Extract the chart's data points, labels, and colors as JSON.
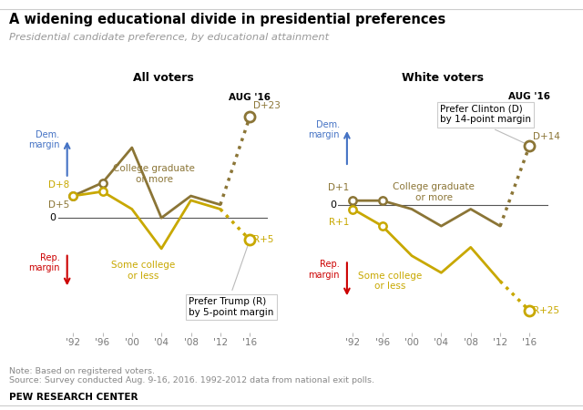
{
  "title": "A widening educational divide in presidential preferences",
  "subtitle": "Presidential candidate preference, by educational attainment",
  "note": "Note: Based on registered voters.",
  "source": "Source: Survey conducted Aug. 9-16, 2016. 1992-2012 data from national exit polls.",
  "brand": "PEW RESEARCH CENTER",
  "years": [
    1992,
    1996,
    2000,
    2004,
    2008,
    2012,
    2016
  ],
  "year_labels": [
    "'92",
    "'96",
    "'00",
    "'04",
    "'08",
    "'12",
    "'16"
  ],
  "all_college": [
    5,
    8,
    16,
    0,
    5,
    3,
    23
  ],
  "all_some": [
    5,
    6,
    2,
    -7,
    4,
    2,
    -5
  ],
  "white_college": [
    1,
    1,
    -1,
    -5,
    -1,
    -5,
    14
  ],
  "white_some": [
    -1,
    -5,
    -12,
    -16,
    -10,
    -18,
    -25
  ],
  "color_college": "#8B7536",
  "color_some": "#C8A800",
  "color_dem": "#4472C4",
  "color_rep": "#CC0000",
  "color_gray": "#999999",
  "background": "#FFFFFF",
  "panel_left_title": "All voters",
  "panel_right_title": "White voters"
}
